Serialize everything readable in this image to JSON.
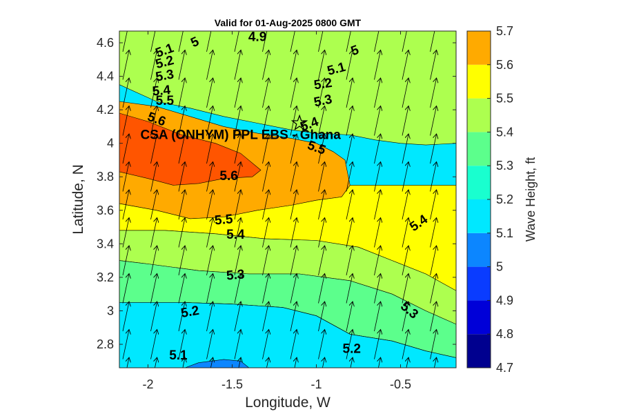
{
  "chart_data": {
    "type": "heatmap",
    "title": "Valid for 01-Aug-2025 0800 GMT",
    "xlabel": "Longitude, W",
    "ylabel": "Latitude, N",
    "xlim": [
      -2.17,
      -0.17
    ],
    "ylim": [
      2.66,
      4.67
    ],
    "xticks": [
      -2,
      -1.5,
      -1,
      -0.5
    ],
    "yticks": [
      2.8,
      3.0,
      3.2,
      3.4,
      3.6,
      3.8,
      4.0,
      4.2,
      4.4,
      4.6
    ],
    "colorbar": {
      "label": "Wave Height, ft",
      "levels": [
        4.7,
        4.8,
        4.9,
        5.0,
        5.1,
        5.2,
        5.3,
        5.4,
        5.5,
        5.6,
        5.7
      ],
      "tick_labels": [
        "4.7",
        "4.8",
        "4.9",
        "5",
        "5.1",
        "5.2",
        "5.3",
        "5.4",
        "5.5",
        "5.6",
        "5.7"
      ],
      "colors": [
        "#00008f",
        "#0000d8",
        "#0a3cff",
        "#0c86ff",
        "#00e8ff",
        "#19ffcf",
        "#5cff8c",
        "#adff4f",
        "#ffff00",
        "#ffaa00",
        "#ff5500"
      ]
    },
    "bands": [
      {
        "level": 4.8,
        "color": "#0000d8",
        "points": [
          [
            -1.08,
            4.67
          ],
          [
            -1.0,
            4.64
          ],
          [
            -0.93,
            4.67
          ]
        ]
      },
      {
        "level": 4.9,
        "color": "#0a3cff",
        "points": [
          [
            -1.72,
            4.67
          ],
          [
            -1.55,
            4.63
          ],
          [
            -1.35,
            4.61
          ],
          [
            -1.15,
            4.59
          ],
          [
            -1.0,
            4.58
          ],
          [
            -0.85,
            4.6
          ],
          [
            -0.7,
            4.67
          ]
        ]
      },
      {
        "level": 5.0,
        "color": "#0c86ff",
        "points": [
          [
            -2.17,
            4.67
          ],
          [
            -1.95,
            4.62
          ],
          [
            -1.75,
            4.58
          ],
          [
            -1.55,
            4.53
          ],
          [
            -1.35,
            4.5
          ],
          [
            -1.15,
            4.48
          ],
          [
            -1.0,
            4.49
          ],
          [
            -0.85,
            4.53
          ],
          [
            -0.65,
            4.61
          ],
          [
            -0.45,
            4.65
          ],
          [
            -0.25,
            4.65
          ],
          [
            -0.17,
            4.65
          ]
        ]
      },
      {
        "level": 5.1,
        "color": "#00e8ff",
        "points": [
          [
            -2.17,
            4.58
          ],
          [
            -1.95,
            4.52
          ],
          [
            -1.75,
            4.47
          ],
          [
            -1.55,
            4.43
          ],
          [
            -1.35,
            4.41
          ],
          [
            -1.15,
            4.38
          ],
          [
            -1.0,
            4.39
          ],
          [
            -0.85,
            4.44
          ],
          [
            -0.7,
            4.48
          ],
          [
            -0.5,
            4.5
          ],
          [
            -0.3,
            4.5
          ],
          [
            -0.17,
            4.5
          ]
        ]
      },
      {
        "level": 5.2,
        "color": "#19ffcf",
        "points": [
          [
            -2.17,
            4.5
          ],
          [
            -1.95,
            4.44
          ],
          [
            -1.75,
            4.39
          ],
          [
            -1.55,
            4.35
          ],
          [
            -1.35,
            4.32
          ],
          [
            -1.15,
            4.29
          ],
          [
            -1.0,
            4.29
          ],
          [
            -0.85,
            4.33
          ],
          [
            -0.7,
            4.38
          ],
          [
            -0.55,
            4.39
          ],
          [
            -0.35,
            4.38
          ],
          [
            -0.17,
            4.38
          ]
        ]
      },
      {
        "level": 5.3,
        "color": "#5cff8c",
        "points": [
          [
            -2.17,
            4.43
          ],
          [
            -1.95,
            4.35
          ],
          [
            -1.75,
            4.31
          ],
          [
            -1.55,
            4.26
          ],
          [
            -1.35,
            4.22
          ],
          [
            -1.15,
            4.19
          ],
          [
            -1.0,
            4.17
          ],
          [
            -0.8,
            4.2
          ],
          [
            -0.6,
            4.22
          ],
          [
            -0.4,
            4.2
          ],
          [
            -0.25,
            4.2
          ],
          [
            -0.17,
            4.19
          ]
        ]
      },
      {
        "level": 5.4,
        "color": "#adff4f",
        "points": [
          [
            -2.17,
            4.35
          ],
          [
            -1.95,
            4.25
          ],
          [
            -1.75,
            4.21
          ],
          [
            -1.55,
            4.16
          ],
          [
            -1.35,
            4.12
          ],
          [
            -1.15,
            4.08
          ],
          [
            -1.0,
            4.06
          ],
          [
            -0.8,
            4.05
          ],
          [
            -0.65,
            4.02
          ],
          [
            -0.5,
            4.0
          ],
          [
            -0.35,
            3.99
          ],
          [
            -0.17,
            4.0
          ]
        ]
      },
      {
        "level": 5.5,
        "color": "#ffff00",
        "points": [
          [
            -2.17,
            3.95
          ],
          [
            -2.0,
            3.86
          ],
          [
            -1.75,
            3.78
          ],
          [
            -1.5,
            3.75
          ],
          [
            -1.3,
            3.7
          ],
          [
            -1.17,
            3.63
          ],
          [
            -1.02,
            3.57
          ],
          [
            -0.92,
            3.52
          ],
          [
            -0.8,
            3.47
          ],
          [
            -0.65,
            3.38
          ],
          [
            -0.5,
            3.3
          ],
          [
            -0.35,
            3.22
          ],
          [
            -0.25,
            3.16
          ],
          [
            -0.17,
            3.12
          ]
        ]
      },
      {
        "level": 5.6,
        "color": "#ffaa00",
        "points": [
          [
            -2.17,
            4.25
          ],
          [
            -1.95,
            4.22
          ],
          [
            -1.75,
            4.16
          ],
          [
            -1.55,
            4.1
          ],
          [
            -1.35,
            4.06
          ],
          [
            -1.15,
            4.03
          ],
          [
            -1.0,
            4.0
          ],
          [
            -0.9,
            3.95
          ],
          [
            -0.83,
            3.9
          ],
          [
            -0.8,
            3.75
          ],
          [
            -0.85,
            3.68
          ],
          [
            -1.0,
            3.66
          ],
          [
            -1.15,
            3.63
          ],
          [
            -1.35,
            3.6
          ],
          [
            -1.55,
            3.56
          ],
          [
            -1.75,
            3.55
          ],
          [
            -1.95,
            3.6
          ],
          [
            -2.17,
            3.64
          ]
        ]
      },
      {
        "level": 5.7,
        "color": "#ff5500",
        "points": [
          [
            -2.17,
            4.18
          ],
          [
            -2.0,
            4.13
          ],
          [
            -1.8,
            4.05
          ],
          [
            -1.6,
            4.0
          ],
          [
            -1.45,
            3.94
          ],
          [
            -1.33,
            3.84
          ],
          [
            -1.38,
            3.8
          ],
          [
            -1.55,
            3.79
          ],
          [
            -1.7,
            3.76
          ],
          [
            -1.85,
            3.75
          ],
          [
            -2.0,
            3.79
          ],
          [
            -2.17,
            3.83
          ]
        ]
      }
    ],
    "contour_labels": [
      {
        "text": "4.9",
        "lon": -1.35,
        "lat": 4.63,
        "angle": 0
      },
      {
        "text": "5",
        "lon": -1.72,
        "lat": 4.6,
        "angle": -25
      },
      {
        "text": "5",
        "lon": -0.77,
        "lat": 4.55,
        "angle": -20
      },
      {
        "text": "5.1",
        "lon": -1.9,
        "lat": 4.55,
        "angle": -20
      },
      {
        "text": "5.1",
        "lon": -0.88,
        "lat": 4.44,
        "angle": -15
      },
      {
        "text": "5.2",
        "lon": -1.9,
        "lat": 4.48,
        "angle": -15
      },
      {
        "text": "5.2",
        "lon": -0.96,
        "lat": 4.35,
        "angle": -8
      },
      {
        "text": "5.3",
        "lon": -1.9,
        "lat": 4.4,
        "angle": -10
      },
      {
        "text": "5.3",
        "lon": -0.96,
        "lat": 4.25,
        "angle": -12
      },
      {
        "text": "5.4",
        "lon": -1.92,
        "lat": 4.31,
        "angle": -5
      },
      {
        "text": "5.4",
        "lon": -1.04,
        "lat": 4.11,
        "angle": -20
      },
      {
        "text": "5.4",
        "lon": -1.48,
        "lat": 3.45,
        "angle": 0
      },
      {
        "text": "5.4",
        "lon": -0.39,
        "lat": 3.52,
        "angle": -35
      },
      {
        "text": "5.5",
        "lon": -1.9,
        "lat": 4.25,
        "angle": 0
      },
      {
        "text": "5.5",
        "lon": -1.0,
        "lat": 3.97,
        "angle": 20
      },
      {
        "text": "5.5",
        "lon": -1.55,
        "lat": 3.54,
        "angle": -5
      },
      {
        "text": "5.6",
        "lon": -1.95,
        "lat": 4.14,
        "angle": 20
      },
      {
        "text": "5.6",
        "lon": -1.52,
        "lat": 3.8,
        "angle": 0
      },
      {
        "text": "5.3",
        "lon": -1.48,
        "lat": 3.21,
        "angle": -5
      },
      {
        "text": "5.3",
        "lon": -0.45,
        "lat": 3.0,
        "angle": 40
      },
      {
        "text": "5.2",
        "lon": -1.75,
        "lat": 2.99,
        "angle": -10
      },
      {
        "text": "5.2",
        "lon": -0.79,
        "lat": 2.77,
        "angle": 0
      },
      {
        "text": "5.1",
        "lon": -1.82,
        "lat": 2.73,
        "angle": 0
      }
    ],
    "site": {
      "name": "CSA (ONHYM) PPL EBS  - Ghana",
      "lon": -1.1,
      "lat": 4.12,
      "marker": "star"
    },
    "wind_vector_direction_deg": 12
  }
}
